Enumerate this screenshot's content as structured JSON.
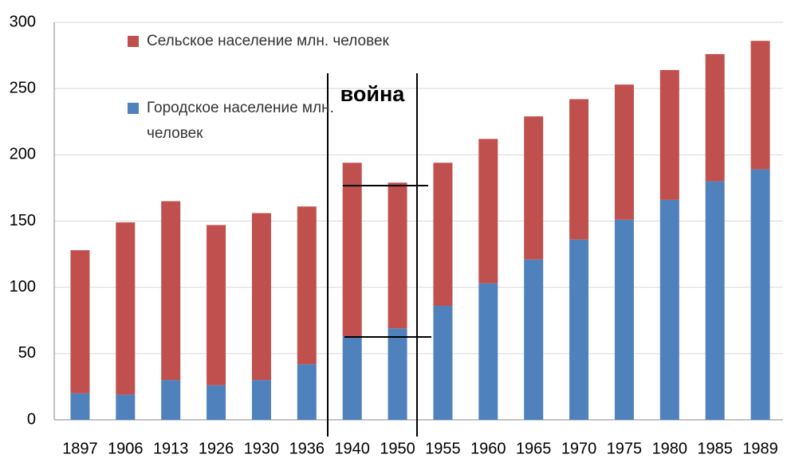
{
  "chart_data": {
    "type": "stacked_bar",
    "categories": [
      "1897",
      "1906",
      "1913",
      "1926",
      "1930",
      "1936",
      "1940",
      "1950",
      "1955",
      "1960",
      "1965",
      "1970",
      "1975",
      "1980",
      "1985",
      "1989"
    ],
    "series": [
      {
        "name": "Сельское население млн. человек",
        "color": "#c0504d",
        "values": [
          108,
          130,
          135,
          121,
          126,
          119,
          131,
          110,
          108,
          109,
          108,
          106,
          102,
          98,
          96,
          97
        ]
      },
      {
        "name": "Городское население млн. человек",
        "color": "#4f81bd",
        "values": [
          20,
          19,
          30,
          26,
          30,
          42,
          63,
          69,
          86,
          103,
          121,
          136,
          151,
          166,
          180,
          189
        ]
      }
    ],
    "ylim": [
      0,
      300
    ],
    "yticks": [
      0,
      50,
      100,
      150,
      200,
      250,
      300
    ],
    "grid": true,
    "annotation": "война"
  }
}
